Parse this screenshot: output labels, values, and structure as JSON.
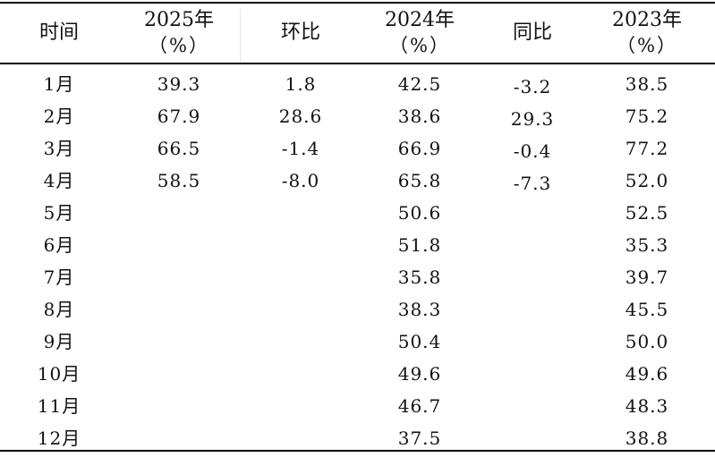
{
  "header": {
    "month": "时间",
    "y2025": "2025年",
    "y2025_unit": "（%）",
    "mom": "环比",
    "y2024": "2024年",
    "y2024_unit": "（%）",
    "yoy": "同比",
    "y2023": "2023年",
    "y2023_unit": "（%）"
  },
  "rows": [
    {
      "month": "1月",
      "y2025": "39.3",
      "mom": "1.8",
      "y2024": "42.5",
      "yoy": "-3.2",
      "y2023": "38.5"
    },
    {
      "month": "2月",
      "y2025": "67.9",
      "mom": "28.6",
      "y2024": "38.6",
      "yoy": "29.3",
      "y2023": "75.2"
    },
    {
      "month": "3月",
      "y2025": "66.5",
      "mom": "-1.4",
      "y2024": "66.9",
      "yoy": "-0.4",
      "y2023": "77.2"
    },
    {
      "month": "4月",
      "y2025": "58.5",
      "mom": "-8.0",
      "y2024": "65.8",
      "yoy": "-7.3",
      "y2023": "52.0"
    },
    {
      "month": "5月",
      "y2025": "",
      "mom": "",
      "y2024": "50.6",
      "yoy": "",
      "y2023": "52.5"
    },
    {
      "month": "6月",
      "y2025": "",
      "mom": "",
      "y2024": "51.8",
      "yoy": "",
      "y2023": "35.3"
    },
    {
      "month": "7月",
      "y2025": "",
      "mom": "",
      "y2024": "35.8",
      "yoy": "",
      "y2023": "39.7"
    },
    {
      "month": "8月",
      "y2025": "",
      "mom": "",
      "y2024": "38.3",
      "yoy": "",
      "y2023": "45.5"
    },
    {
      "month": "9月",
      "y2025": "",
      "mom": "",
      "y2024": "50.4",
      "yoy": "",
      "y2023": "50.0"
    },
    {
      "month": "10月",
      "y2025": "",
      "mom": "",
      "y2024": "49.6",
      "yoy": "",
      "y2023": "49.6"
    },
    {
      "month": "11月",
      "y2025": "",
      "mom": "",
      "y2024": "46.7",
      "yoy": "",
      "y2023": "48.3"
    },
    {
      "month": "12月",
      "y2025": "",
      "mom": "",
      "y2024": "37.5",
      "yoy": "",
      "y2023": "38.8"
    }
  ]
}
